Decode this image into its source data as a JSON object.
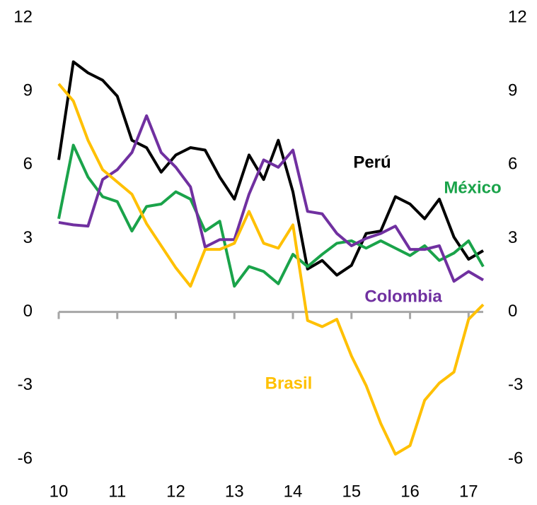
{
  "chart_data": {
    "type": "line",
    "categories": [
      "10",
      null,
      null,
      null,
      "11",
      null,
      null,
      null,
      "12",
      null,
      null,
      null,
      "13",
      null,
      null,
      null,
      "14",
      null,
      null,
      null,
      "15",
      null,
      null,
      null,
      "16",
      null,
      null,
      null,
      "17",
      null
    ],
    "series": [
      {
        "name": "Perú",
        "color": "#000000",
        "values": [
          6.2,
          10.2,
          9.75,
          9.45,
          8.8,
          7.0,
          6.7,
          5.7,
          6.4,
          6.7,
          6.6,
          5.5,
          4.6,
          6.4,
          5.4,
          7.0,
          4.9,
          1.75,
          2.1,
          1.5,
          1.9,
          3.2,
          3.3,
          4.7,
          4.4,
          3.8,
          4.6,
          3.05,
          2.15,
          2.5
        ]
      },
      {
        "name": "México",
        "color": "#1aa34a",
        "values": [
          3.8,
          6.8,
          5.5,
          4.7,
          4.5,
          3.3,
          4.3,
          4.4,
          4.9,
          4.6,
          3.3,
          3.7,
          1.05,
          1.85,
          1.65,
          1.15,
          2.35,
          1.85,
          2.35,
          2.8,
          2.9,
          2.6,
          2.9,
          2.6,
          2.3,
          2.7,
          2.1,
          2.4,
          2.9,
          1.85
        ]
      },
      {
        "name": "Colombia",
        "color": "#7030a0",
        "values": [
          3.65,
          3.55,
          3.5,
          5.4,
          5.8,
          6.5,
          8.0,
          6.5,
          5.9,
          5.1,
          2.65,
          2.95,
          2.95,
          4.8,
          6.2,
          5.9,
          6.6,
          4.1,
          4.0,
          3.2,
          2.7,
          3.0,
          3.2,
          3.5,
          2.55,
          2.55,
          2.7,
          1.25,
          1.65,
          1.3
        ]
      },
      {
        "name": "Brasil",
        "color": "#ffc000",
        "values": [
          9.3,
          8.6,
          7.0,
          5.8,
          5.3,
          4.8,
          3.6,
          2.7,
          1.8,
          1.05,
          2.55,
          2.55,
          2.8,
          4.1,
          2.8,
          2.6,
          3.55,
          -0.35,
          -0.6,
          -0.3,
          -1.8,
          -3.0,
          -4.55,
          -5.8,
          -5.45,
          -3.6,
          -2.9,
          -2.45,
          -0.3,
          0.3
        ]
      }
    ],
    "ylim": [
      -6,
      12
    ],
    "yticks": [
      -6,
      -3,
      0,
      3,
      6,
      9,
      12
    ],
    "y2lim": [
      -6,
      12
    ],
    "y2ticks": [
      -6,
      -3,
      0,
      3,
      6,
      9,
      12
    ],
    "axis_color": "#a6a6a6"
  }
}
